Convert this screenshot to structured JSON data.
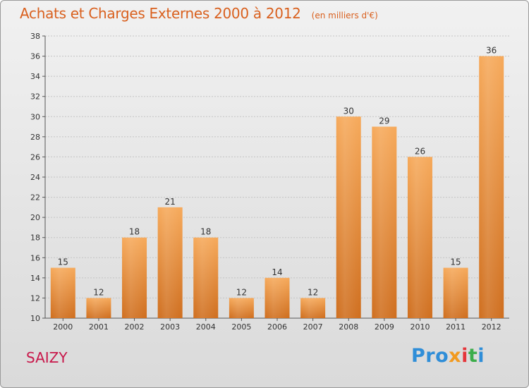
{
  "header": {
    "title": "Achats et Charges Externes 2000 à 2012",
    "unit": "(en milliers d'€)"
  },
  "commune": "SAIZY",
  "brand": {
    "name": "Proxiti",
    "letters": [
      "Pro",
      "x",
      "i",
      "t",
      "i"
    ],
    "colors": [
      "#2f8ed8",
      "#f29a1f",
      "#e5363b",
      "#3cad4a",
      "#2f8ed8"
    ]
  },
  "chart_data": {
    "type": "bar",
    "title": "Achats et Charges Externes 2000 à 2012",
    "subtitle": "(en milliers d'€)",
    "categories": [
      "2000",
      "2001",
      "2002",
      "2003",
      "2004",
      "2005",
      "2006",
      "2007",
      "2008",
      "2009",
      "2010",
      "2011",
      "2012"
    ],
    "values": [
      15,
      12,
      18,
      21,
      18,
      12,
      14,
      12,
      30,
      29,
      26,
      15,
      36
    ],
    "ylim": [
      10,
      38
    ],
    "yticks": [
      10,
      12,
      14,
      16,
      18,
      20,
      22,
      24,
      26,
      28,
      30,
      32,
      34,
      36,
      38
    ],
    "grid": true,
    "legend": "none",
    "bar_color": "#f29a47"
  }
}
